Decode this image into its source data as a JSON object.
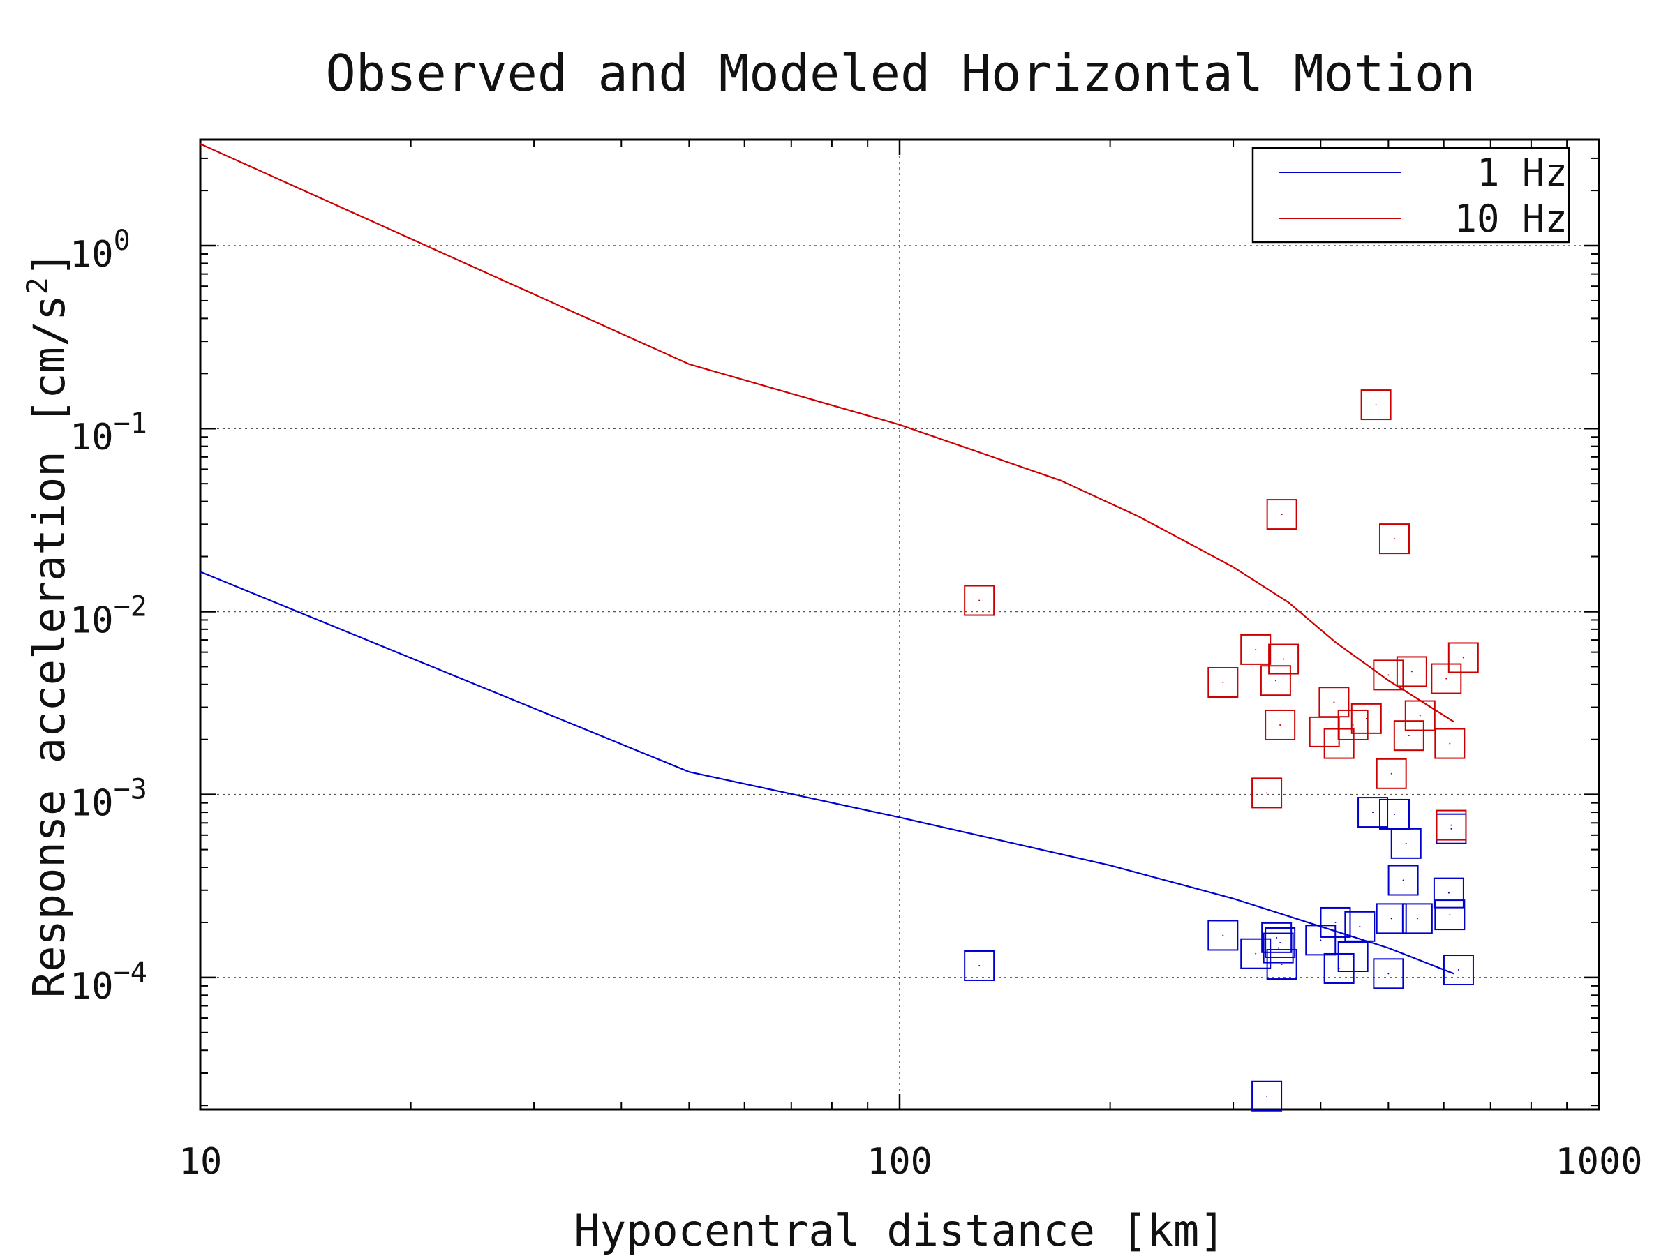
{
  "chart_data": {
    "type": "scatter",
    "title": "Observed and Modeled Horizontal Motion",
    "xlabel": "Hypocentral distance [km]",
    "ylabel": "Response acceleration [cm/s",
    "ylabel_sup": "2",
    "ylabel_end": "]",
    "xscale": "log",
    "yscale": "log",
    "xlim": [
      10,
      1000
    ],
    "ylim": [
      1.9e-05,
      3.8
    ],
    "grid": true,
    "legend_position": "top-right",
    "x_ticks": [
      {
        "value": 10,
        "label": "10"
      },
      {
        "value": 100,
        "label": "100"
      },
      {
        "value": 1000,
        "label": "1000"
      }
    ],
    "y_ticks": [
      {
        "value": 1,
        "base": "10",
        "exp": "0"
      },
      {
        "value": 0.1,
        "base": "10",
        "exp": "−1"
      },
      {
        "value": 0.01,
        "base": "10",
        "exp": "−2"
      },
      {
        "value": 0.001,
        "base": "10",
        "exp": "−3"
      },
      {
        "value": 0.0001,
        "base": "10",
        "exp": "−4"
      }
    ],
    "series": [
      {
        "name": "1 Hz",
        "color": "#0000cc",
        "model_line": [
          [
            10,
            0.0165
          ],
          [
            50,
            0.00133
          ],
          [
            100,
            0.00075
          ],
          [
            200,
            0.00041
          ],
          [
            300,
            0.00027
          ],
          [
            400,
            0.00019
          ],
          [
            500,
            0.000145
          ],
          [
            620,
            0.000105
          ]
        ],
        "observed": [
          [
            130,
            0.000116
          ],
          [
            290,
            0.00017
          ],
          [
            323,
            0.000135
          ],
          [
            335,
            2.25e-05
          ],
          [
            346,
            0.000165
          ],
          [
            348,
            0.000145
          ],
          [
            350,
            0.000155
          ],
          [
            352,
            0.000118
          ],
          [
            400,
            0.00016
          ],
          [
            420,
            0.0002
          ],
          [
            425,
            0.000112
          ],
          [
            445,
            0.00013
          ],
          [
            455,
            0.00019
          ],
          [
            475,
            0.0008
          ],
          [
            500,
            0.000105
          ],
          [
            505,
            0.00021
          ],
          [
            510,
            0.00078
          ],
          [
            525,
            0.00034
          ],
          [
            530,
            0.00054
          ],
          [
            550,
            0.00021
          ],
          [
            610,
            0.00029
          ],
          [
            612,
            0.00022
          ],
          [
            615,
            0.00065
          ],
          [
            630,
            0.00011
          ]
        ]
      },
      {
        "name": "10 Hz",
        "color": "#cc0000",
        "model_line": [
          [
            10,
            3.6
          ],
          [
            50,
            0.225
          ],
          [
            100,
            0.105
          ],
          [
            170,
            0.052
          ],
          [
            220,
            0.033
          ],
          [
            300,
            0.0175
          ],
          [
            360,
            0.0112
          ],
          [
            420,
            0.0068
          ],
          [
            500,
            0.0042
          ],
          [
            620,
            0.0025
          ]
        ],
        "observed": [
          [
            130,
            0.0115
          ],
          [
            290,
            0.0041
          ],
          [
            323,
            0.0062
          ],
          [
            335,
            0.00102
          ],
          [
            345,
            0.0042
          ],
          [
            350,
            0.0024
          ],
          [
            352,
            0.034
          ],
          [
            354,
            0.0055
          ],
          [
            405,
            0.0022
          ],
          [
            418,
            0.0032
          ],
          [
            425,
            0.0019
          ],
          [
            445,
            0.0024
          ],
          [
            465,
            0.0026
          ],
          [
            480,
            0.135
          ],
          [
            500,
            0.0045
          ],
          [
            505,
            0.0013
          ],
          [
            510,
            0.025
          ],
          [
            535,
            0.0021
          ],
          [
            540,
            0.0047
          ],
          [
            555,
            0.0027
          ],
          [
            605,
            0.0043
          ],
          [
            612,
            0.0019
          ],
          [
            615,
            0.00068
          ],
          [
            640,
            0.0056
          ]
        ]
      }
    ]
  }
}
